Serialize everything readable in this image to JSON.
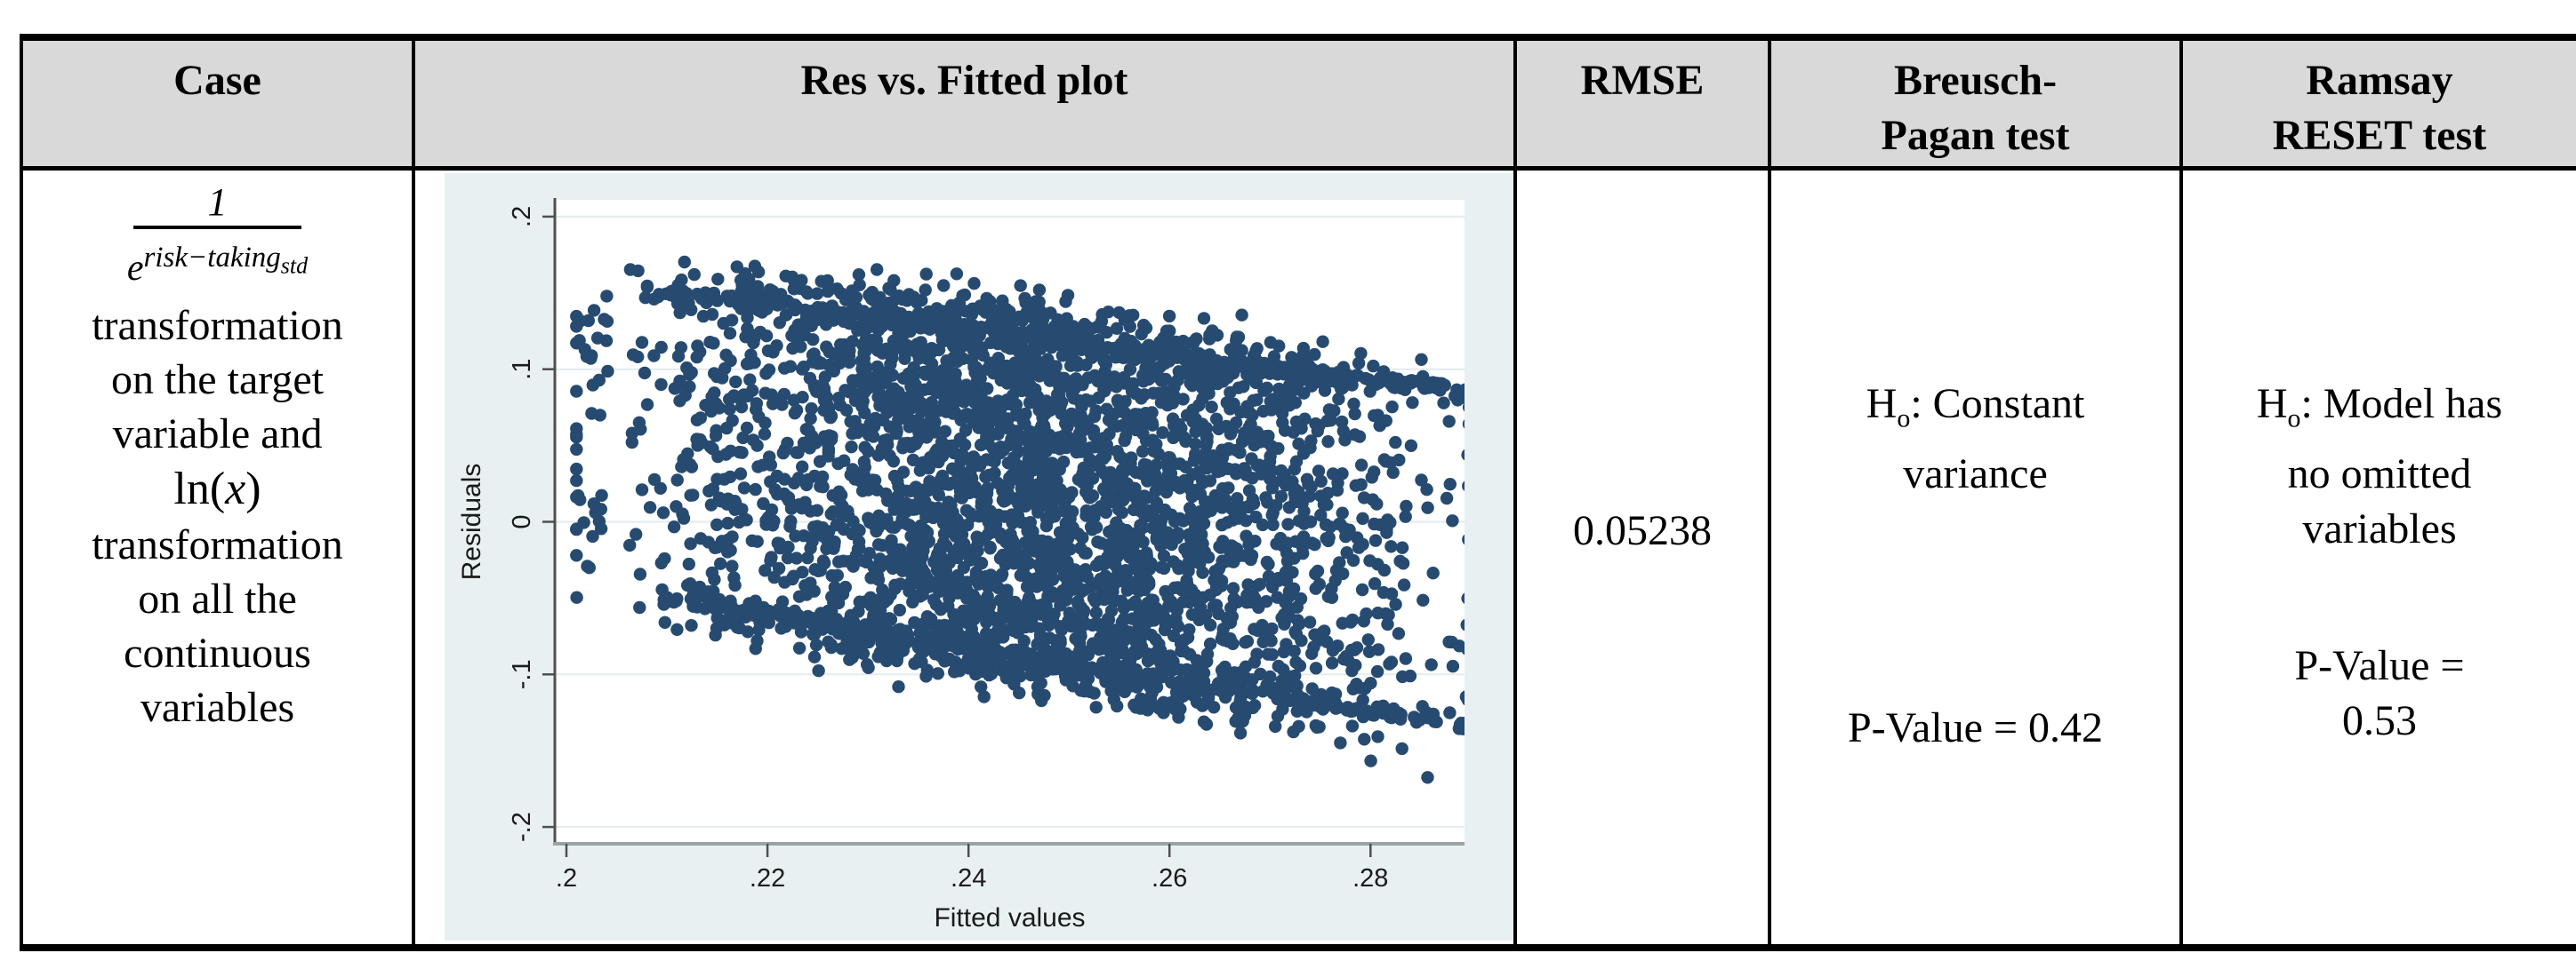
{
  "table": {
    "headers": {
      "case": "Case",
      "plot": "Res vs. Fitted plot",
      "rmse": "RMSE",
      "bp_line1": "Breusch-",
      "bp_line2": "Pagan test",
      "reset_line1": "Ramsay",
      "reset_line2": "RESET test"
    },
    "row": {
      "case": {
        "formula_numerator": "1",
        "formula_base": "e",
        "formula_exponent": "risk−taking",
        "formula_exponent_sub": "std",
        "line1": "transformation",
        "line2": "on the target",
        "line3": "variable and",
        "ln_open": "ln(",
        "ln_var": "x",
        "ln_close": ")",
        "line5": "transformation",
        "line6": "on all the",
        "line7": "continuous",
        "line8": "variables"
      },
      "rmse_value": "0.05238",
      "breusch_pagan": {
        "h": "H",
        "h_sub": "o",
        "h_rest": ": Constant",
        "h_line2": "variance",
        "pvalue": "P-Value = 0.42"
      },
      "ramsay_reset": {
        "h": "H",
        "h_sub": "o",
        "h_rest": ": Model has",
        "h_line2": "no omitted",
        "h_line3": "variables",
        "pvalue_line1": "P-Value =",
        "pvalue_line2": "0.53"
      }
    }
  },
  "chart_data": {
    "type": "scatter",
    "title": "",
    "xlabel": "Fitted values",
    "ylabel": "Residuals",
    "xlim": [
      0.19885,
      0.28935
    ],
    "ylim": [
      -0.211,
      0.211
    ],
    "xticks": [
      ".2",
      ".22",
      ".24",
      ".26",
      ".28"
    ],
    "xtick_values": [
      0.2,
      0.22,
      0.24,
      0.26,
      0.28
    ],
    "yticks": [
      ".2",
      ".1",
      "0",
      "-.1",
      "-.2"
    ],
    "ytick_values": [
      0.2,
      0.1,
      0,
      -0.1,
      -0.2
    ],
    "grid": true,
    "legend": "none",
    "point_color": "#274b70",
    "plot_bg": "#ffffff",
    "figure_bg": "#e9f0f2",
    "gridline_color": "#e4ebee",
    "axis_color": "#4f4f4f",
    "points_synthesized": true,
    "cloud": {
      "description": "dense navy residual cloud: slanted band sloping downward, fitted 0.205-0.289, residuals about -0.14 to 0.16",
      "seed": 12345,
      "f_min": 0.2045,
      "f_max": 0.2895,
      "top_start": 0.158,
      "top_slope": -0.82,
      "bot_start": -0.048,
      "bot_slope": -1.05,
      "n_core": 2900,
      "n_fringe": 520,
      "n_top_edge": 350,
      "n_bot_edge": 250,
      "n_left": 45,
      "n_right": 55,
      "radius": 7.2
    }
  }
}
